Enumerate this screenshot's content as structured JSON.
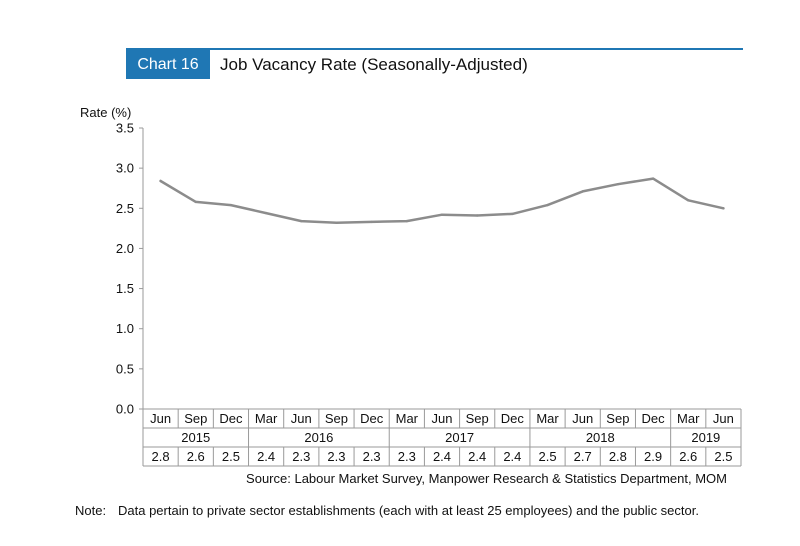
{
  "colors": {
    "accent": "#1f77b4",
    "line": "#8c8c8c",
    "axis": "#9a9a9a",
    "text": "#111111"
  },
  "header": {
    "badge": "Chart 16",
    "title": "Job Vacancy Rate (Seasonally-Adjusted)"
  },
  "source": "Source: Labour Market Survey, Manpower Research & Statistics Department, MOM",
  "note": {
    "label": "Note:",
    "text": "Data pertain to private sector establishments (each with at least 25 employees) and the public sector."
  },
  "chart_data": {
    "type": "line",
    "ylabel": "Rate (%)",
    "ylim": [
      0,
      3.5
    ],
    "yticks": [
      "0.0",
      "0.5",
      "1.0",
      "1.5",
      "2.0",
      "2.5",
      "3.0",
      "3.5"
    ],
    "quarters": [
      "Jun",
      "Sep",
      "Dec",
      "Mar",
      "Jun",
      "Sep",
      "Dec",
      "Mar",
      "Jun",
      "Sep",
      "Dec",
      "Mar",
      "Jun",
      "Sep",
      "Dec",
      "Mar",
      "Jun"
    ],
    "years": [
      {
        "label": "2015",
        "count": 3
      },
      {
        "label": "2016",
        "count": 4
      },
      {
        "label": "2017",
        "count": 4
      },
      {
        "label": "2018",
        "count": 4
      },
      {
        "label": "2019",
        "count": 2
      }
    ],
    "value_labels": [
      "2.8",
      "2.6",
      "2.5",
      "2.4",
      "2.3",
      "2.3",
      "2.3",
      "2.3",
      "2.4",
      "2.4",
      "2.4",
      "2.5",
      "2.7",
      "2.8",
      "2.9",
      "2.6",
      "2.5"
    ],
    "values": [
      2.84,
      2.58,
      2.54,
      2.44,
      2.34,
      2.32,
      2.33,
      2.34,
      2.42,
      2.41,
      2.43,
      2.54,
      2.71,
      2.8,
      2.87,
      2.6,
      2.5
    ]
  }
}
